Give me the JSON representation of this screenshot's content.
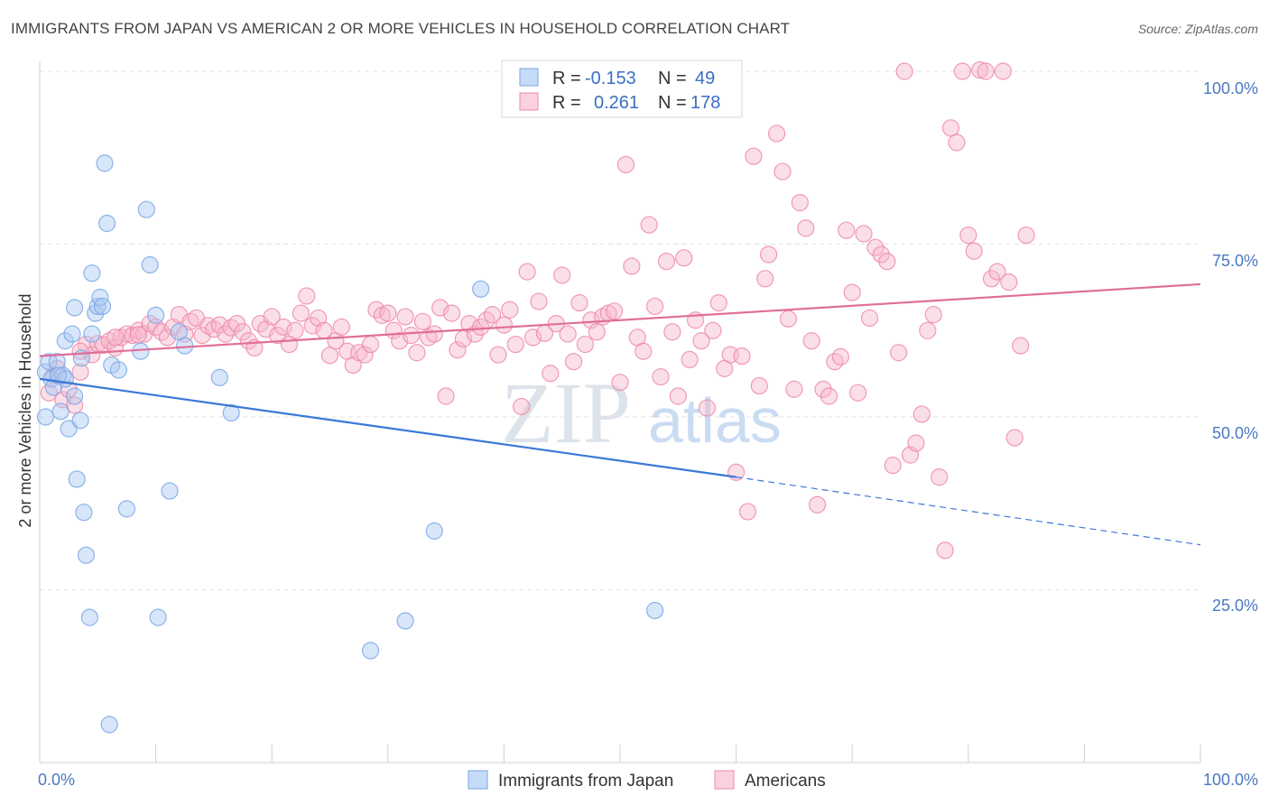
{
  "title": "IMMIGRANTS FROM JAPAN VS AMERICAN 2 OR MORE VEHICLES IN HOUSEHOLD CORRELATION CHART",
  "source": "Source: ZipAtlas.com",
  "watermark": {
    "zip": "ZIP",
    "atlas": "atlas"
  },
  "legend_box": {
    "rows": [
      {
        "r_label": "R =",
        "r_value": "-0.153",
        "n_label": "N =",
        "n_value": "49",
        "color": "#a9c8f2"
      },
      {
        "r_label": "R =",
        "r_value": "0.261",
        "n_label": "N =",
        "n_value": "178",
        "color": "#f7b9cb"
      }
    ]
  },
  "bottom_legend": [
    {
      "label": "Immigrants from Japan",
      "color": "#a9c8f2"
    },
    {
      "label": "Americans",
      "color": "#f7b9cb"
    }
  ],
  "chart_data": {
    "type": "scatter",
    "ylabel": "2 or more Vehicles in Household",
    "xlim": [
      0,
      100
    ],
    "ylim": [
      0,
      100
    ],
    "x_tick_labels": [
      "0.0%",
      "100.0%"
    ],
    "y_tick_labels": [
      "25.0%",
      "50.0%",
      "75.0%",
      "100.0%"
    ],
    "y_ticks": [
      25,
      50,
      75,
      100
    ],
    "grid": true,
    "series": [
      {
        "name": "Immigrants from Japan",
        "color": "#7aa7e6",
        "fill": "#a9c8f2",
        "trend": {
          "x": [
            0,
            60
          ],
          "y": [
            55.5,
            41.3
          ],
          "dashed_to": [
            100,
            31.5
          ],
          "color": "#3a78d8"
        },
        "points": [
          [
            0.5,
            56.5
          ],
          [
            0.8,
            58
          ],
          [
            0.5,
            50
          ],
          [
            1.0,
            55.5
          ],
          [
            1.5,
            58
          ],
          [
            2.0,
            56
          ],
          [
            1.8,
            50.8
          ],
          [
            2.2,
            61
          ],
          [
            2.5,
            48.3
          ],
          [
            3.0,
            53
          ],
          [
            2.8,
            62
          ],
          [
            3.2,
            41
          ],
          [
            3.5,
            49.5
          ],
          [
            3.8,
            36.2
          ],
          [
            4.0,
            30
          ],
          [
            3.6,
            58.5
          ],
          [
            4.3,
            21
          ],
          [
            4.5,
            62
          ],
          [
            4.8,
            65
          ],
          [
            5.0,
            66
          ],
          [
            5.2,
            67.3
          ],
          [
            5.4,
            66
          ],
          [
            5.8,
            78
          ],
          [
            5.6,
            86.7
          ],
          [
            6.2,
            57.5
          ],
          [
            6.0,
            5.5
          ],
          [
            6.8,
            56.8
          ],
          [
            7.5,
            36.7
          ],
          [
            8.7,
            59.5
          ],
          [
            9.2,
            80
          ],
          [
            9.5,
            72
          ],
          [
            10.0,
            64.7
          ],
          [
            10.2,
            21
          ],
          [
            11.2,
            39.3
          ],
          [
            12.0,
            62.3
          ],
          [
            12.5,
            60.3
          ],
          [
            15.5,
            55.7
          ],
          [
            16.5,
            50.6
          ],
          [
            4.5,
            70.8
          ],
          [
            28.5,
            16.2
          ],
          [
            31.5,
            20.5
          ],
          [
            34.0,
            33.5
          ],
          [
            38.0,
            68.5
          ],
          [
            42.5,
            100.2
          ],
          [
            53.0,
            22
          ],
          [
            1.2,
            54.3
          ],
          [
            2.2,
            55.5
          ],
          [
            3.0,
            65.8
          ],
          [
            1.6,
            56
          ]
        ]
      },
      {
        "name": "Americans",
        "color": "#ef8aa8",
        "fill": "#f7b9cb",
        "trend": {
          "x": [
            0,
            100
          ],
          "y": [
            58.8,
            69.2
          ],
          "color": "#e06e98"
        },
        "points": [
          [
            0.8,
            53.5
          ],
          [
            1.2,
            56
          ],
          [
            1.5,
            57
          ],
          [
            2.0,
            52.5
          ],
          [
            2.5,
            54
          ],
          [
            3.0,
            51.7
          ],
          [
            3.5,
            56.5
          ],
          [
            4.0,
            60.5
          ],
          [
            4.5,
            59
          ],
          [
            5.0,
            60.6
          ],
          [
            5.5,
            60.4
          ],
          [
            6.0,
            61
          ],
          [
            6.5,
            60
          ],
          [
            7.0,
            61.5
          ],
          [
            7.5,
            62
          ],
          [
            8.0,
            61.8
          ],
          [
            8.5,
            62.5
          ],
          [
            9.0,
            62
          ],
          [
            9.5,
            63.5
          ],
          [
            10.0,
            63
          ],
          [
            10.5,
            62.3
          ],
          [
            11.0,
            61.5
          ],
          [
            11.5,
            63
          ],
          [
            12.0,
            64.8
          ],
          [
            12.5,
            62
          ],
          [
            13.0,
            63.8
          ],
          [
            13.5,
            64.3
          ],
          [
            14.0,
            61.8
          ],
          [
            14.5,
            63.2
          ],
          [
            15.0,
            62.7
          ],
          [
            15.5,
            63.3
          ],
          [
            16.0,
            62
          ],
          [
            16.5,
            62.9
          ],
          [
            17.0,
            63.5
          ],
          [
            17.5,
            62.3
          ],
          [
            18.0,
            61
          ],
          [
            18.5,
            60
          ],
          [
            19.0,
            63.5
          ],
          [
            19.5,
            62.7
          ],
          [
            20.0,
            64.5
          ],
          [
            20.5,
            61.8
          ],
          [
            21.0,
            63
          ],
          [
            21.5,
            60.5
          ],
          [
            22.0,
            62.5
          ],
          [
            22.5,
            65
          ],
          [
            23.0,
            67.5
          ],
          [
            23.5,
            63.2
          ],
          [
            24.0,
            64.3
          ],
          [
            24.5,
            62.5
          ],
          [
            25.0,
            58.9
          ],
          [
            25.5,
            61
          ],
          [
            26.0,
            63
          ],
          [
            26.5,
            59.5
          ],
          [
            27.0,
            57.5
          ],
          [
            27.5,
            59.3
          ],
          [
            28.0,
            59
          ],
          [
            28.5,
            60.5
          ],
          [
            29.0,
            65.5
          ],
          [
            29.5,
            64.7
          ],
          [
            30.0,
            65
          ],
          [
            30.5,
            62.5
          ],
          [
            31.0,
            61
          ],
          [
            31.5,
            64.5
          ],
          [
            32.0,
            61.8
          ],
          [
            32.5,
            59.3
          ],
          [
            33.0,
            63.8
          ],
          [
            33.5,
            61.5
          ],
          [
            34.0,
            62
          ],
          [
            34.5,
            65.8
          ],
          [
            35.0,
            53
          ],
          [
            35.5,
            65
          ],
          [
            36.0,
            59.7
          ],
          [
            36.5,
            61.3
          ],
          [
            37.0,
            63.5
          ],
          [
            37.5,
            62
          ],
          [
            38.0,
            63
          ],
          [
            38.5,
            64
          ],
          [
            39.0,
            64.8
          ],
          [
            39.5,
            59
          ],
          [
            40.0,
            63.3
          ],
          [
            40.5,
            65.5
          ],
          [
            41.0,
            60.5
          ],
          [
            41.5,
            51.5
          ],
          [
            42.0,
            71
          ],
          [
            42.5,
            61.5
          ],
          [
            43.0,
            66.7
          ],
          [
            43.5,
            62.1
          ],
          [
            44.0,
            56.3
          ],
          [
            44.5,
            63.5
          ],
          [
            45.0,
            70.5
          ],
          [
            45.5,
            62
          ],
          [
            46.0,
            58
          ],
          [
            46.5,
            66.5
          ],
          [
            47.0,
            60.5
          ],
          [
            47.5,
            64
          ],
          [
            48.0,
            62.3
          ],
          [
            48.5,
            64.5
          ],
          [
            49.0,
            65
          ],
          [
            49.5,
            65.3
          ],
          [
            50.0,
            55
          ],
          [
            50.5,
            86.5
          ],
          [
            51.0,
            71.8
          ],
          [
            51.5,
            61.5
          ],
          [
            52.0,
            59.5
          ],
          [
            52.5,
            77.8
          ],
          [
            53.0,
            66
          ],
          [
            53.5,
            55.8
          ],
          [
            54.0,
            72.5
          ],
          [
            54.5,
            62.3
          ],
          [
            55.0,
            53
          ],
          [
            55.5,
            73
          ],
          [
            56.0,
            58.3
          ],
          [
            56.5,
            64
          ],
          [
            57.0,
            61
          ],
          [
            57.5,
            51.3
          ],
          [
            58.0,
            62.5
          ],
          [
            58.5,
            66.5
          ],
          [
            59.0,
            57
          ],
          [
            59.5,
            59
          ],
          [
            60.0,
            42
          ],
          [
            60.5,
            58.8
          ],
          [
            61.0,
            36.3
          ],
          [
            61.5,
            87.7
          ],
          [
            62.0,
            54.5
          ],
          [
            62.5,
            70
          ],
          [
            62.8,
            73.5
          ],
          [
            63.5,
            91
          ],
          [
            64.0,
            85.5
          ],
          [
            64.5,
            64.2
          ],
          [
            65.0,
            54
          ],
          [
            65.5,
            81
          ],
          [
            66.0,
            77.3
          ],
          [
            66.5,
            61
          ],
          [
            67.0,
            37.3
          ],
          [
            67.5,
            54
          ],
          [
            68.0,
            53
          ],
          [
            68.5,
            58
          ],
          [
            69.0,
            58.7
          ],
          [
            69.5,
            77
          ],
          [
            70.0,
            68
          ],
          [
            70.5,
            53.5
          ],
          [
            71.0,
            76.5
          ],
          [
            71.5,
            64.3
          ],
          [
            72.0,
            74.5
          ],
          [
            72.5,
            73.5
          ],
          [
            73.0,
            72.5
          ],
          [
            73.5,
            43
          ],
          [
            74.0,
            59.3
          ],
          [
            74.5,
            100
          ],
          [
            75.0,
            44.5
          ],
          [
            75.5,
            46.2
          ],
          [
            76.0,
            50.4
          ],
          [
            76.5,
            62.5
          ],
          [
            77.0,
            64.8
          ],
          [
            77.5,
            41.3
          ],
          [
            78.0,
            30.7
          ],
          [
            78.5,
            91.8
          ],
          [
            79.0,
            89.7
          ],
          [
            79.5,
            100
          ],
          [
            80.0,
            76.3
          ],
          [
            80.5,
            74
          ],
          [
            81.0,
            100.2
          ],
          [
            81.5,
            100
          ],
          [
            82.0,
            70
          ],
          [
            82.5,
            71
          ],
          [
            83.0,
            100
          ],
          [
            83.5,
            69.5
          ],
          [
            84.0,
            47
          ],
          [
            84.5,
            60.3
          ],
          [
            85.0,
            76.3
          ],
          [
            3.5,
            59.5
          ],
          [
            6.5,
            61.5
          ],
          [
            8.5,
            61.9
          ]
        ]
      }
    ]
  }
}
